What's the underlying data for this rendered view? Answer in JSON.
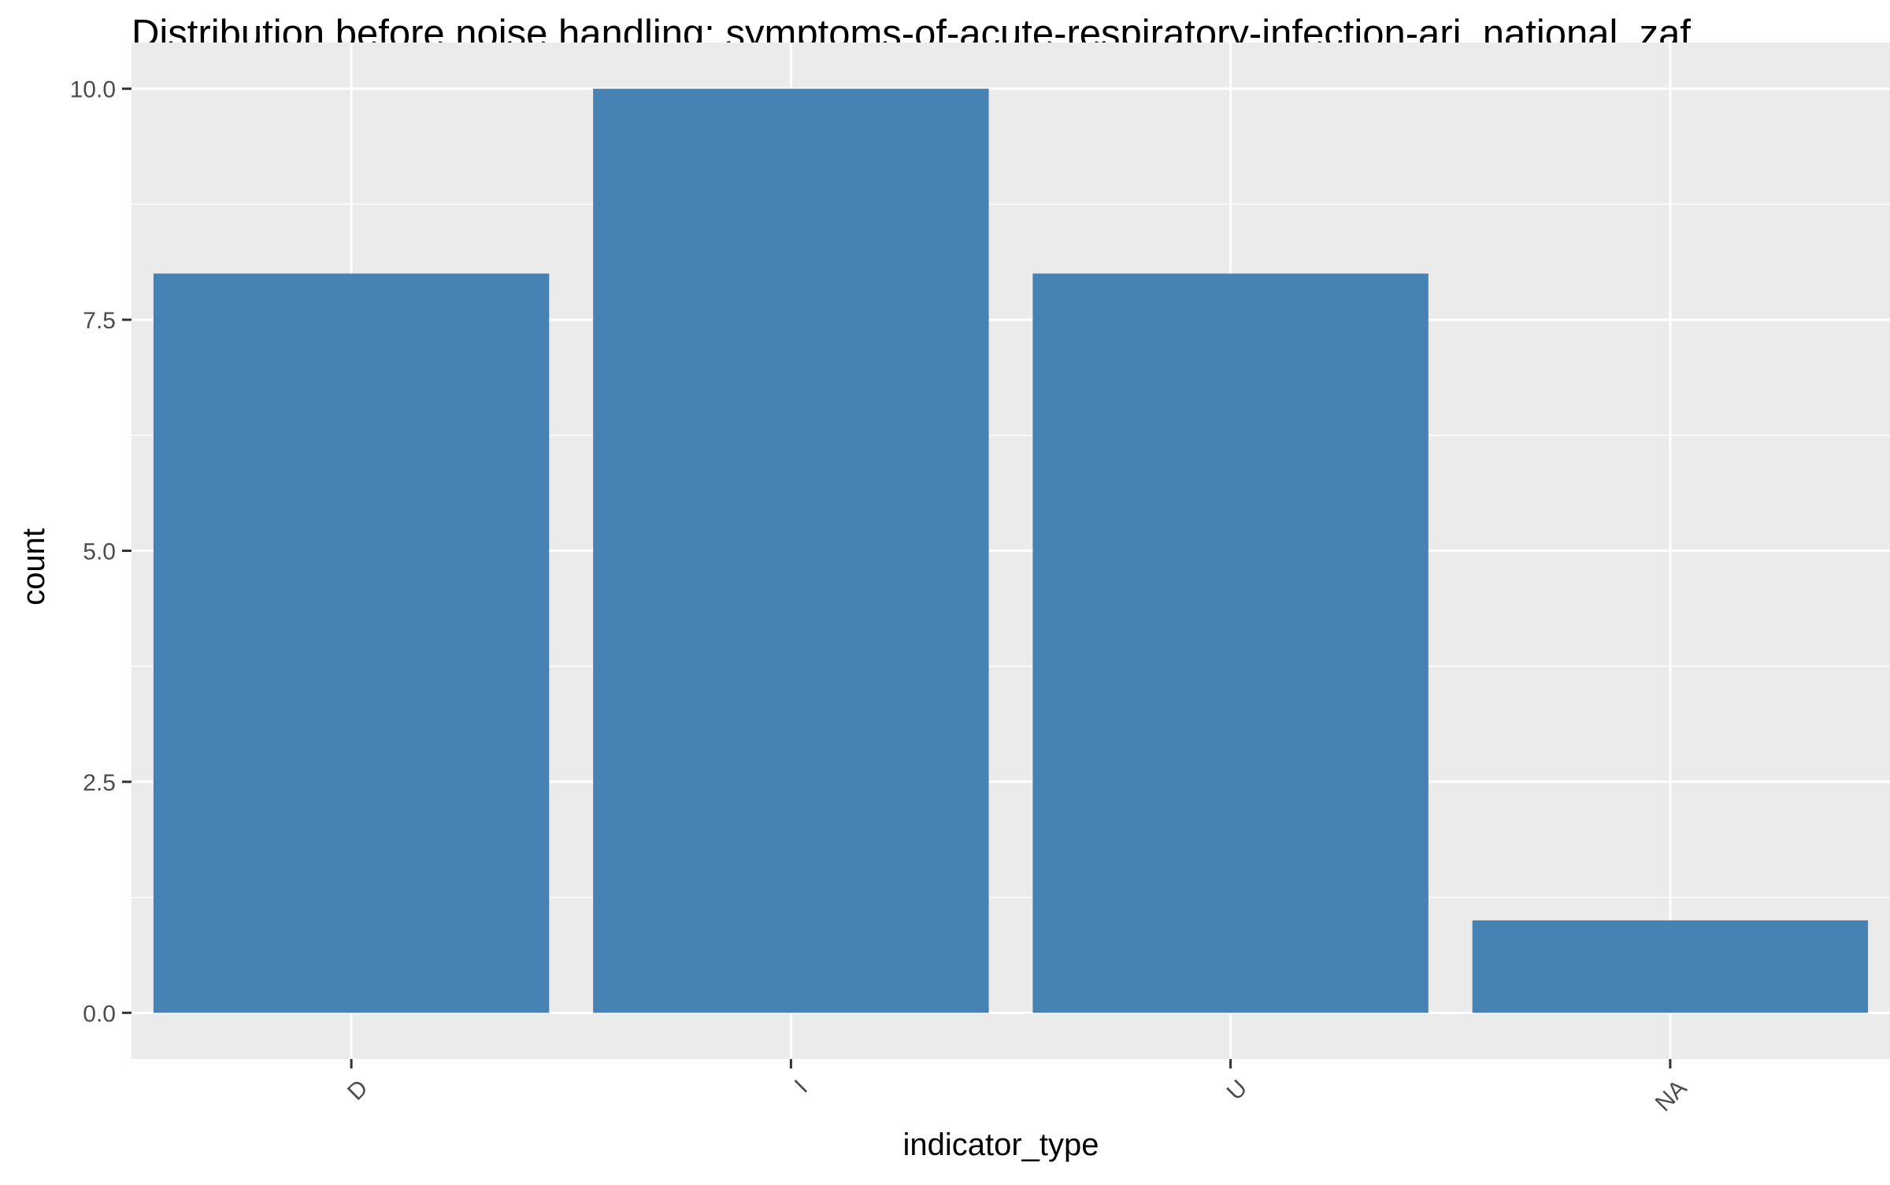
{
  "chart_data": {
    "type": "bar",
    "title": "Distribution before noise handling: symptoms-of-acute-respiratory-infection-ari_national_zaf_",
    "xlabel": "indicator_type",
    "ylabel": "count",
    "categories": [
      "D",
      "I",
      "U",
      "NA"
    ],
    "values": [
      8,
      10,
      8,
      1
    ],
    "ylim": [
      -0.5,
      10.5
    ],
    "yticks": [
      0.0,
      2.5,
      5.0,
      7.5,
      10.0
    ],
    "ytick_labels": [
      "0.0",
      "2.5",
      "5.0",
      "7.5",
      "10.0"
    ],
    "grid": true,
    "legend": "none",
    "colors": {
      "bar": "#4682b4",
      "panel": "#ebebeb",
      "grid": "#ffffff",
      "tick_text": "#4d4d4d",
      "tick_mark": "#333333"
    }
  }
}
